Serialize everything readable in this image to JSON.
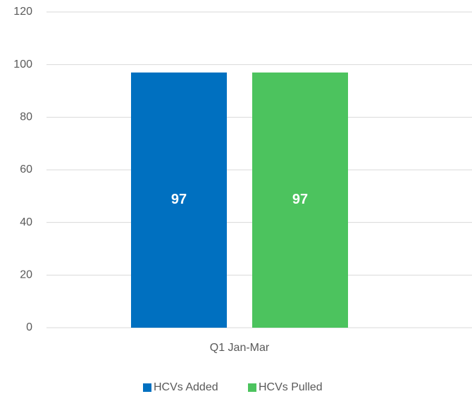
{
  "chart_data": {
    "type": "bar",
    "categories": [
      "Q1 Jan-Mar"
    ],
    "series": [
      {
        "name": "HCVs Added",
        "color": "#0070c0",
        "values": [
          97
        ]
      },
      {
        "name": "HCVs Pulled",
        "color": "#4cc35e",
        "values": [
          97
        ]
      }
    ],
    "ylim": [
      0,
      120
    ],
    "yticks": [
      0,
      20,
      40,
      60,
      80,
      100,
      120
    ],
    "grid": true,
    "legend": "bottom"
  }
}
